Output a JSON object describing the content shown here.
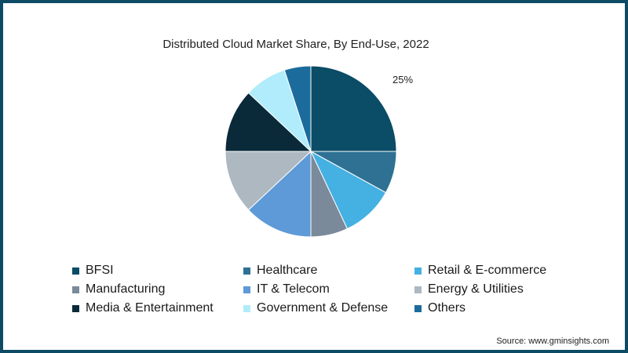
{
  "chart_data": {
    "type": "pie",
    "title": "Distributed Cloud Market Share, By End-Use, 2022",
    "slices": [
      {
        "label": "BFSI",
        "value": 25,
        "color": "#0b4c66",
        "data_label": "25%"
      },
      {
        "label": "Healthcare",
        "value": 8,
        "color": "#2e7193",
        "data_label": ""
      },
      {
        "label": "Retail & E-commerce",
        "value": 10,
        "color": "#45b0e2",
        "data_label": ""
      },
      {
        "label": "Manufacturing",
        "value": 7,
        "color": "#7a8a9b",
        "data_label": ""
      },
      {
        "label": "IT & Telecom",
        "value": 13,
        "color": "#5d9ad7",
        "data_label": ""
      },
      {
        "label": "Energy & Utilities",
        "value": 12,
        "color": "#adb8c1",
        "data_label": ""
      },
      {
        "label": "Media & Entertainment",
        "value": 12,
        "color": "#0a2a3a",
        "data_label": ""
      },
      {
        "label": "Government & Defense",
        "value": 8,
        "color": "#b0ecfb",
        "data_label": ""
      },
      {
        "label": "Others",
        "value": 5,
        "color": "#1b6c9d",
        "data_label": ""
      }
    ],
    "legend_position": "bottom"
  },
  "source": "Source: www.gminsights.com"
}
